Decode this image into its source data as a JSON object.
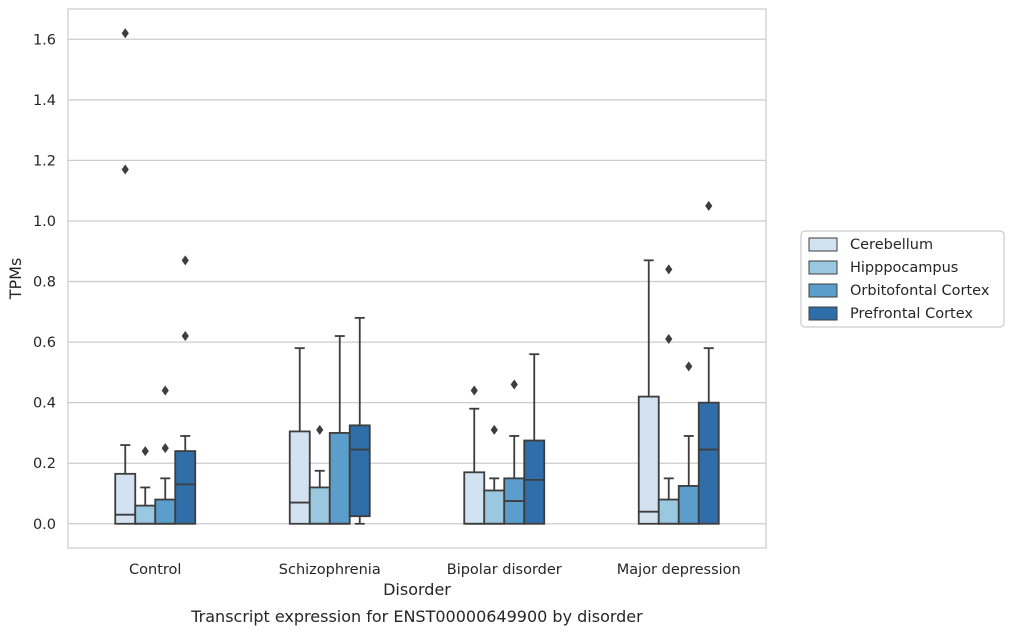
{
  "chart_data": {
    "type": "box",
    "title": "",
    "caption": "Transcript expression for ENST00000649900 by disorder",
    "xlabel": "Disorder",
    "ylabel": "TPMs",
    "ylim": [
      -0.08,
      1.7
    ],
    "yticks": [
      0.0,
      0.2,
      0.4,
      0.6,
      0.8,
      1.0,
      1.2,
      1.4,
      1.6
    ],
    "ytick_labels": [
      "0.0",
      "0.2",
      "0.4",
      "0.6",
      "0.8",
      "1.0",
      "1.2",
      "1.4",
      "1.6"
    ],
    "grid": "horizontal",
    "legend_position": "right",
    "categories": [
      "Control",
      "Schizophrenia",
      "Bipolar disorder",
      "Major depression"
    ],
    "series": [
      {
        "name": "Cerebellum",
        "color": "#d2e2f0",
        "boxes": [
          {
            "whislo": 0.0,
            "q1": 0.0,
            "med": 0.03,
            "q3": 0.165,
            "whishi": 0.26,
            "fliers": [
              1.62,
              1.17
            ]
          },
          {
            "whislo": 0.0,
            "q1": 0.0,
            "med": 0.07,
            "q3": 0.305,
            "whishi": 0.58,
            "fliers": []
          },
          {
            "whislo": 0.0,
            "q1": 0.0,
            "med": 0.0,
            "q3": 0.17,
            "whishi": 0.38,
            "fliers": [
              0.44
            ]
          },
          {
            "whislo": 0.0,
            "q1": 0.0,
            "med": 0.04,
            "q3": 0.42,
            "whishi": 0.87,
            "fliers": []
          }
        ]
      },
      {
        "name": "Hipppocampus",
        "color": "#9ac8e0",
        "boxes": [
          {
            "whislo": 0.0,
            "q1": 0.0,
            "med": 0.0,
            "q3": 0.06,
            "whishi": 0.12,
            "fliers": [
              0.24
            ]
          },
          {
            "whislo": 0.0,
            "q1": 0.0,
            "med": 0.0,
            "q3": 0.12,
            "whishi": 0.175,
            "fliers": [
              0.31
            ]
          },
          {
            "whislo": 0.0,
            "q1": 0.0,
            "med": 0.0,
            "q3": 0.11,
            "whishi": 0.15,
            "fliers": [
              0.31
            ]
          },
          {
            "whislo": 0.0,
            "q1": 0.0,
            "med": 0.0,
            "q3": 0.08,
            "whishi": 0.15,
            "fliers": [
              0.84,
              0.61
            ]
          }
        ]
      },
      {
        "name": "Orbitofontal Cortex",
        "color": "#5b9ecb",
        "boxes": [
          {
            "whislo": 0.0,
            "q1": 0.0,
            "med": 0.0,
            "q3": 0.08,
            "whishi": 0.15,
            "fliers": [
              0.44,
              0.25
            ]
          },
          {
            "whislo": 0.0,
            "q1": 0.0,
            "med": 0.0,
            "q3": 0.3,
            "whishi": 0.62,
            "fliers": []
          },
          {
            "whislo": 0.0,
            "q1": 0.0,
            "med": 0.075,
            "q3": 0.15,
            "whishi": 0.29,
            "fliers": [
              0.46
            ]
          },
          {
            "whislo": 0.0,
            "q1": 0.0,
            "med": 0.0,
            "q3": 0.125,
            "whishi": 0.29,
            "fliers": [
              0.52
            ]
          }
        ]
      },
      {
        "name": "Prefrontal Cortex",
        "color": "#2f6ea8",
        "boxes": [
          {
            "whislo": 0.0,
            "q1": 0.0,
            "med": 0.13,
            "q3": 0.24,
            "whishi": 0.29,
            "fliers": [
              0.87,
              0.62
            ]
          },
          {
            "whislo": 0.0,
            "q1": 0.025,
            "med": 0.245,
            "q3": 0.325,
            "whishi": 0.68,
            "fliers": []
          },
          {
            "whislo": 0.0,
            "q1": 0.0,
            "med": 0.145,
            "q3": 0.275,
            "whishi": 0.56,
            "fliers": []
          },
          {
            "whislo": 0.0,
            "q1": 0.0,
            "med": 0.245,
            "q3": 0.4,
            "whishi": 0.58,
            "fliers": [
              1.05
            ]
          }
        ]
      }
    ]
  }
}
